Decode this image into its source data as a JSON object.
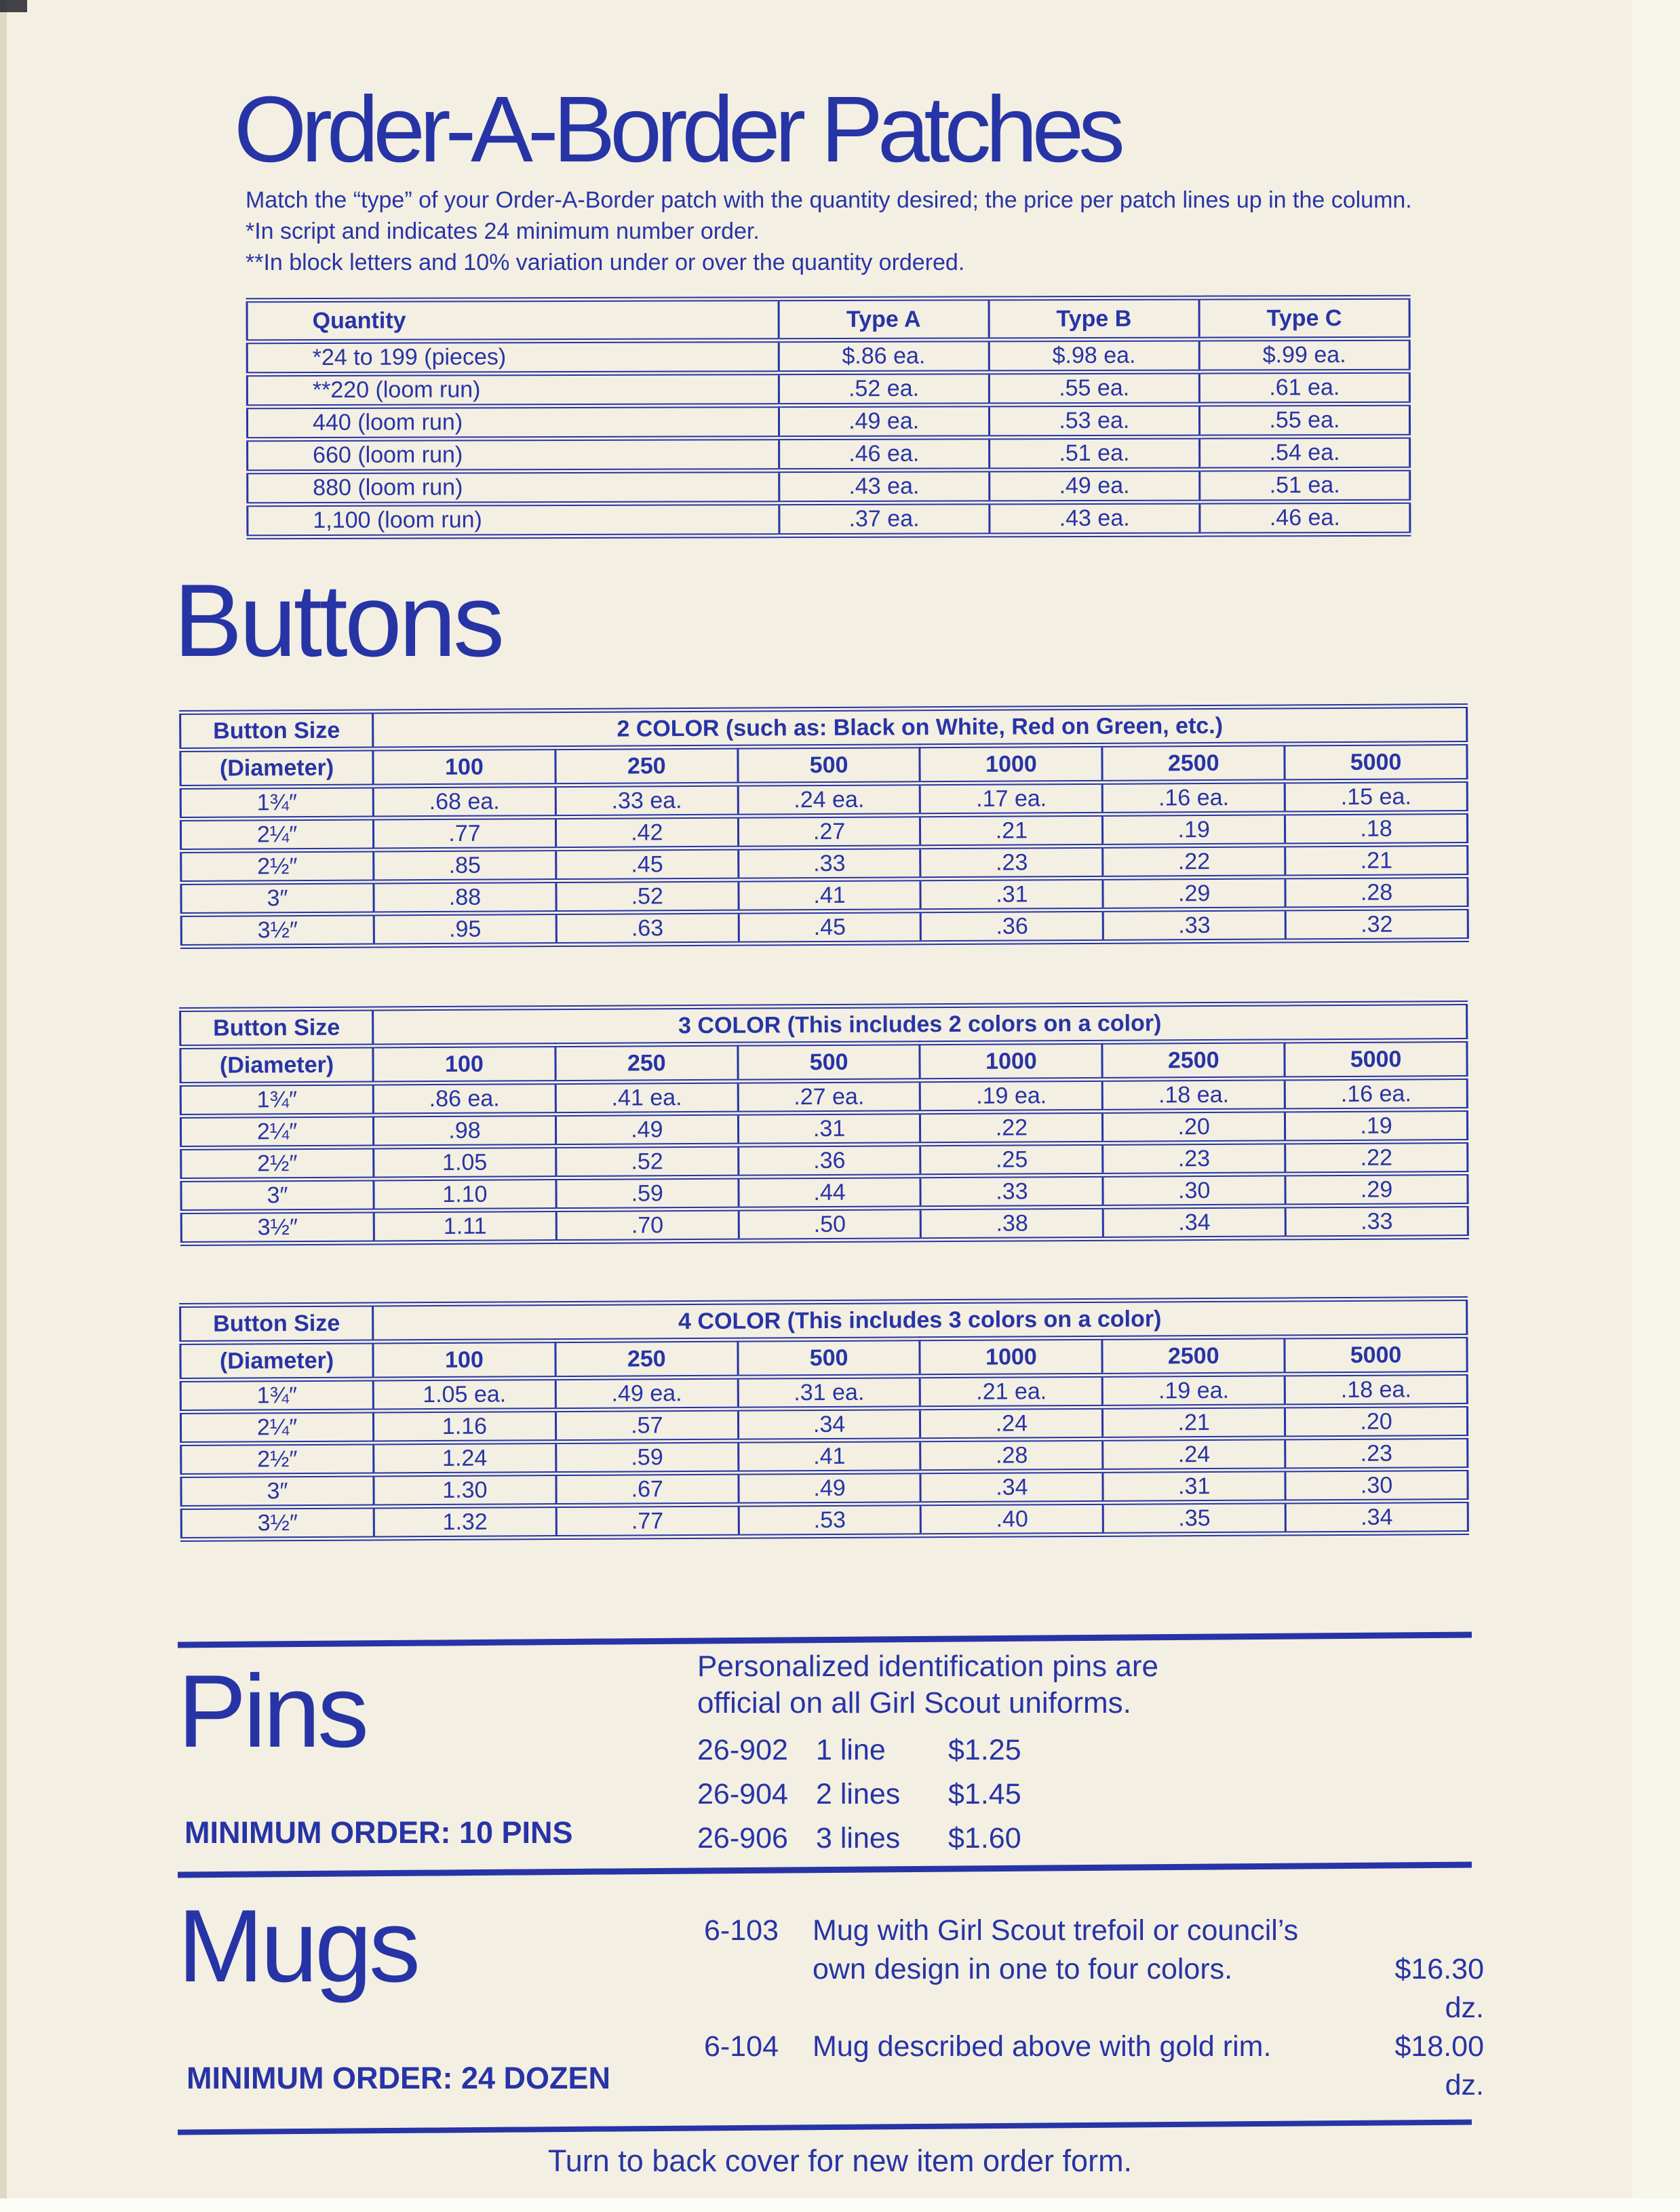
{
  "colors": {
    "ink": "#2734a6",
    "paper": "#f3efe2"
  },
  "page": {
    "title": "Order-A-Border Patches",
    "intro": "Match the “type” of your Order-A-Border patch with the quantity desired; the price per patch lines up in the column.",
    "footnote1": "*In script and indicates 24 minimum number order.",
    "footnote2": "**In block letters and 10% variation under or over the quantity ordered.",
    "footer": "Turn to back cover for new item order form."
  },
  "patch_table": {
    "headers": [
      "Quantity",
      "Type A",
      "Type B",
      "Type C"
    ],
    "rows": [
      [
        "*24 to 199 (pieces)",
        "$.86 ea.",
        "$.98 ea.",
        "$.99 ea."
      ],
      [
        "**220 (loom run)",
        ".52 ea.",
        ".55 ea.",
        ".61 ea."
      ],
      [
        "440 (loom run)",
        ".49 ea.",
        ".53 ea.",
        ".55 ea."
      ],
      [
        "660 (loom run)",
        ".46 ea.",
        ".51 ea.",
        ".54 ea."
      ],
      [
        "880 (loom run)",
        ".43 ea.",
        ".49 ea.",
        ".51 ea."
      ],
      [
        "1,100 (loom run)",
        ".37 ea.",
        ".43 ea.",
        ".46 ea."
      ]
    ]
  },
  "buttons": {
    "heading": "Buttons",
    "size_header_line1": "Button Size",
    "size_header_line2": "(Diameter)",
    "quantities": [
      "100",
      "250",
      "500",
      "1000",
      "2500",
      "5000"
    ],
    "tables": [
      {
        "title": "2 COLOR (such as: Black on White, Red on Green, etc.)",
        "rows": [
          {
            "size": "1¾″",
            "prices": [
              ".68 ea.",
              ".33 ea.",
              ".24 ea.",
              ".17 ea.",
              ".16 ea.",
              ".15 ea."
            ]
          },
          {
            "size": "2¼″",
            "prices": [
              ".77",
              ".42",
              ".27",
              ".21",
              ".19",
              ".18"
            ]
          },
          {
            "size": "2½″",
            "prices": [
              ".85",
              ".45",
              ".33",
              ".23",
              ".22",
              ".21"
            ]
          },
          {
            "size": "3″",
            "prices": [
              ".88",
              ".52",
              ".41",
              ".31",
              ".29",
              ".28"
            ]
          },
          {
            "size": "3½″",
            "prices": [
              ".95",
              ".63",
              ".45",
              ".36",
              ".33",
              ".32"
            ]
          }
        ]
      },
      {
        "title": "3 COLOR (This includes 2 colors on a color)",
        "rows": [
          {
            "size": "1¾″",
            "prices": [
              ".86 ea.",
              ".41 ea.",
              ".27 ea.",
              ".19 ea.",
              ".18 ea.",
              ".16 ea."
            ]
          },
          {
            "size": "2¼″",
            "prices": [
              ".98",
              ".49",
              ".31",
              ".22",
              ".20",
              ".19"
            ]
          },
          {
            "size": "2½″",
            "prices": [
              "1.05",
              ".52",
              ".36",
              ".25",
              ".23",
              ".22"
            ]
          },
          {
            "size": "3″",
            "prices": [
              "1.10",
              ".59",
              ".44",
              ".33",
              ".30",
              ".29"
            ]
          },
          {
            "size": "3½″",
            "prices": [
              "1.11",
              ".70",
              ".50",
              ".38",
              ".34",
              ".33"
            ]
          }
        ]
      },
      {
        "title": "4 COLOR (This includes 3 colors on a color)",
        "rows": [
          {
            "size": "1¾″",
            "prices": [
              "1.05 ea.",
              ".49 ea.",
              ".31 ea.",
              ".21 ea.",
              ".19 ea.",
              ".18 ea."
            ]
          },
          {
            "size": "2¼″",
            "prices": [
              "1.16",
              ".57",
              ".34",
              ".24",
              ".21",
              ".20"
            ]
          },
          {
            "size": "2½″",
            "prices": [
              "1.24",
              ".59",
              ".41",
              ".28",
              ".24",
              ".23"
            ]
          },
          {
            "size": "3″",
            "prices": [
              "1.30",
              ".67",
              ".49",
              ".34",
              ".31",
              ".30"
            ]
          },
          {
            "size": "3½″",
            "prices": [
              "1.32",
              ".77",
              ".53",
              ".40",
              ".35",
              ".34"
            ]
          }
        ]
      }
    ]
  },
  "pins": {
    "heading": "Pins",
    "description_line1": "Personalized identification pins are",
    "description_line2": "official on all Girl Scout uniforms.",
    "items": [
      {
        "code": "26-902",
        "desc": "1 line",
        "price": "$1.25"
      },
      {
        "code": "26-904",
        "desc": "2 lines",
        "price": "$1.45"
      },
      {
        "code": "26-906",
        "desc": "3 lines",
        "price": "$1.60"
      }
    ],
    "minimum": "MINIMUM ORDER: 10 PINS"
  },
  "mugs": {
    "heading": "Mugs",
    "items": [
      {
        "code": "6-103",
        "desc_line1": "Mug with Girl Scout trefoil or council’s",
        "desc_line2": "own design in one to four colors.",
        "price": "$16.30 dz."
      },
      {
        "code": "6-104",
        "desc": "Mug described above with gold rim.",
        "price": "$18.00 dz."
      }
    ],
    "minimum": "MINIMUM ORDER: 24 DOZEN"
  }
}
